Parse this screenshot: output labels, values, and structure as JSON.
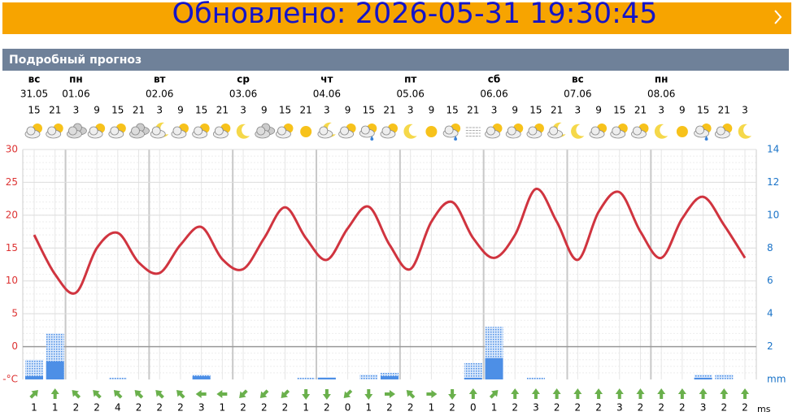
{
  "banner": {
    "updated": "Обновлено: 2026-05-31 19:30:45"
  },
  "panel": {
    "title": "Подробный прогноз"
  },
  "days": [
    {
      "name": "вс",
      "date": "31.05"
    },
    {
      "name": "пн",
      "date": "01.06"
    },
    {
      "name": "вт",
      "date": "02.06"
    },
    {
      "name": "ср",
      "date": "03.06"
    },
    {
      "name": "чт",
      "date": "04.06"
    },
    {
      "name": "пт",
      "date": "05.06"
    },
    {
      "name": "сб",
      "date": "06.06"
    },
    {
      "name": "вс",
      "date": "07.06"
    },
    {
      "name": "пн",
      "date": "08.06"
    }
  ],
  "hours": [
    15,
    21,
    3,
    9,
    15,
    21,
    3,
    9,
    15,
    21,
    3,
    9,
    15,
    21,
    3,
    9,
    15,
    21,
    3,
    9,
    15,
    21,
    3,
    9,
    15,
    21,
    3,
    9,
    15,
    21,
    3,
    9,
    15,
    21,
    3
  ],
  "temperature": {
    "unit": "-°C",
    "ylim": [
      -5,
      30
    ],
    "yticks": [
      0,
      5,
      10,
      15,
      20,
      25,
      30
    ],
    "values": [
      17,
      11,
      8.2,
      15,
      17.3,
      12.8,
      11.2,
      15.5,
      18.2,
      13.3,
      11.8,
      16.5,
      21.2,
      16.5,
      13.2,
      18,
      21.3,
      15.5,
      11.8,
      19,
      22,
      16.5,
      13.5,
      17,
      24,
      19,
      13.2,
      20.5,
      23.5,
      17.5,
      13.5,
      19.5,
      22.8,
      18.5,
      13.5
    ]
  },
  "precipitation": {
    "unit": "mm",
    "ylim": [
      0,
      14
    ],
    "yticks": [
      2,
      4,
      6,
      8,
      10,
      12,
      14
    ],
    "total": [
      1.2,
      2.8,
      0,
      0,
      0.1,
      0,
      0,
      0,
      0.3,
      0,
      0,
      0,
      0,
      0.1,
      0.15,
      0,
      0.3,
      0.4,
      0,
      0,
      0,
      1,
      3.2,
      0,
      0.1,
      0,
      0,
      0,
      0,
      0,
      0,
      0,
      0.3,
      0.3,
      0
    ],
    "solid": [
      0.2,
      1.1,
      0,
      0,
      0,
      0,
      0,
      0,
      0.2,
      0,
      0,
      0,
      0,
      0,
      0.1,
      0,
      0,
      0.2,
      0,
      0,
      0,
      0.1,
      1.3,
      0,
      0,
      0,
      0,
      0,
      0,
      0,
      0,
      0,
      0.1,
      0,
      0
    ]
  },
  "wind": {
    "unit": "ms",
    "speed": [
      1,
      1,
      2,
      2,
      4,
      2,
      2,
      2,
      3,
      1,
      2,
      2,
      2,
      1,
      2,
      0,
      1,
      2,
      2,
      1,
      2,
      0,
      1,
      2,
      3,
      2,
      2,
      2,
      3,
      2,
      2,
      2,
      3,
      2,
      2
    ],
    "direction": [
      225,
      180,
      135,
      135,
      135,
      135,
      135,
      135,
      90,
      90,
      45,
      45,
      45,
      0,
      0,
      45,
      0,
      270,
      135,
      270,
      0,
      180,
      225,
      180,
      180,
      180,
      180,
      180,
      180,
      180,
      180,
      180,
      180,
      180,
      180
    ]
  }
}
